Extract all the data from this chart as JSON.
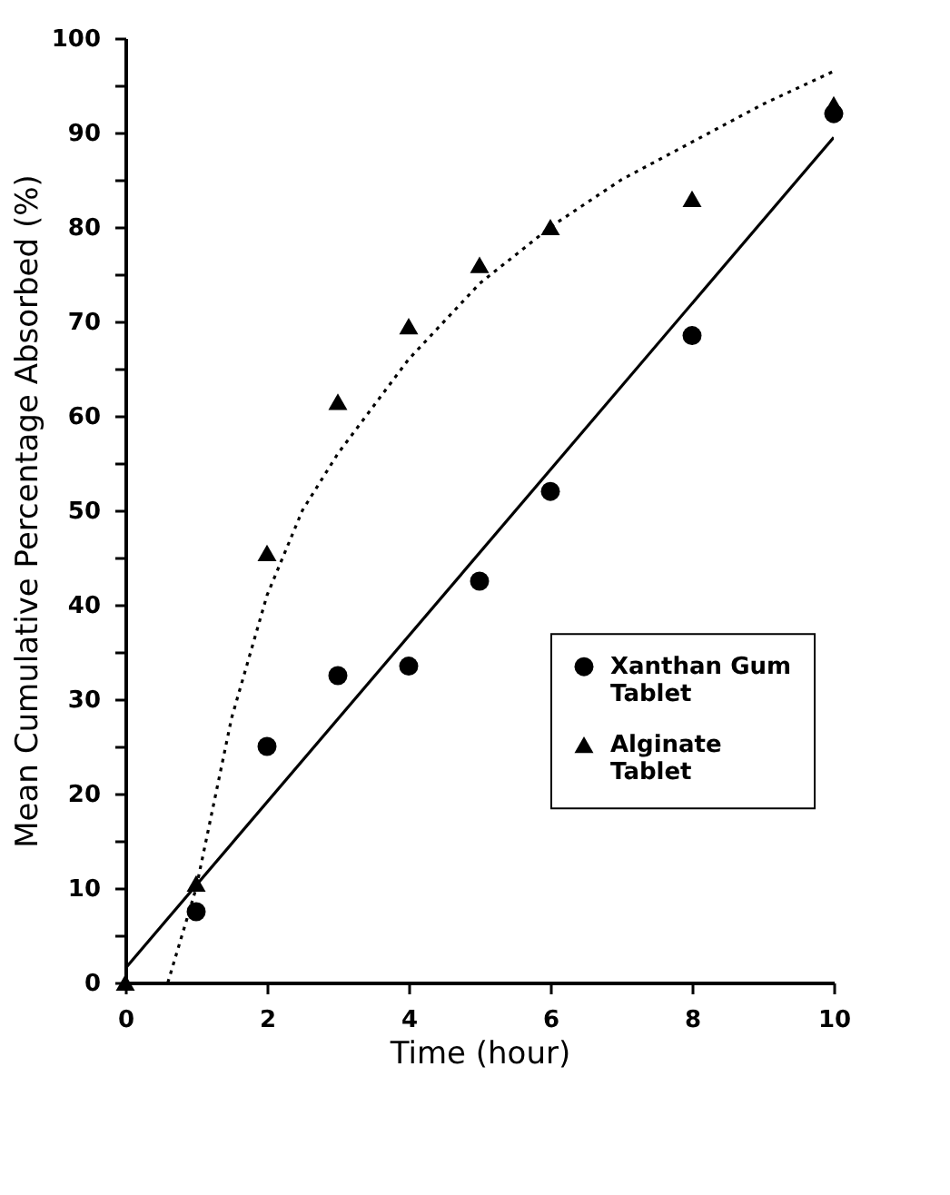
{
  "chart_data": {
    "type": "scatter",
    "xlabel": "Time (hour)",
    "ylabel": "Mean Cumulative Percentage Absorbed (%)",
    "xlim": [
      0,
      10
    ],
    "xticks": [
      0,
      2,
      4,
      6,
      8,
      10
    ],
    "ylim": [
      0,
      100
    ],
    "yticks": [
      0,
      {
        "value": 5,
        "label": null
      },
      10,
      {
        "value": 15,
        "label": null
      },
      20,
      {
        "value": 25,
        "label": null
      },
      30,
      {
        "value": 35,
        "label": null
      },
      40,
      {
        "value": 45,
        "label": null
      },
      50,
      {
        "value": 55,
        "label": null
      },
      60,
      {
        "value": 65,
        "label": null
      },
      70,
      {
        "value": 75,
        "label": null
      },
      80,
      {
        "value": 85,
        "label": null
      },
      90,
      {
        "value": 95,
        "label": null
      },
      100
    ],
    "grid": false,
    "legend": "bottom right",
    "series": [
      {
        "name": "Xanthan Gum Tablet",
        "marker": "circle",
        "color": "#000000",
        "x": [
          1,
          2,
          3,
          4,
          5,
          6,
          8,
          10
        ],
        "values": [
          7.5,
          25,
          32.5,
          33.5,
          42.5,
          52,
          68.5,
          92
        ]
      },
      {
        "name": "Alginate Tablet",
        "marker": "triangle",
        "color": "#000000",
        "x": [
          0,
          1,
          2,
          3,
          4,
          5,
          6,
          8,
          10
        ],
        "values": [
          0,
          10.5,
          45.5,
          61.5,
          69.5,
          76,
          80,
          83,
          93
        ]
      },
      {
        "type": "line",
        "line_style": "solid",
        "color": "#000000",
        "x": [
          0,
          10
        ],
        "values": [
          1.5,
          89.5
        ]
      },
      {
        "type": "line",
        "line_style": "dotted",
        "color": "#000000",
        "x": [
          0.6,
          0.8,
          1,
          1.5,
          2,
          2.5,
          3,
          4,
          5,
          6,
          7,
          8,
          9,
          10
        ],
        "values": [
          0,
          5,
          10,
          28,
          41,
          50,
          56,
          66,
          74,
          80,
          85,
          89,
          93,
          96.5
        ]
      }
    ]
  }
}
